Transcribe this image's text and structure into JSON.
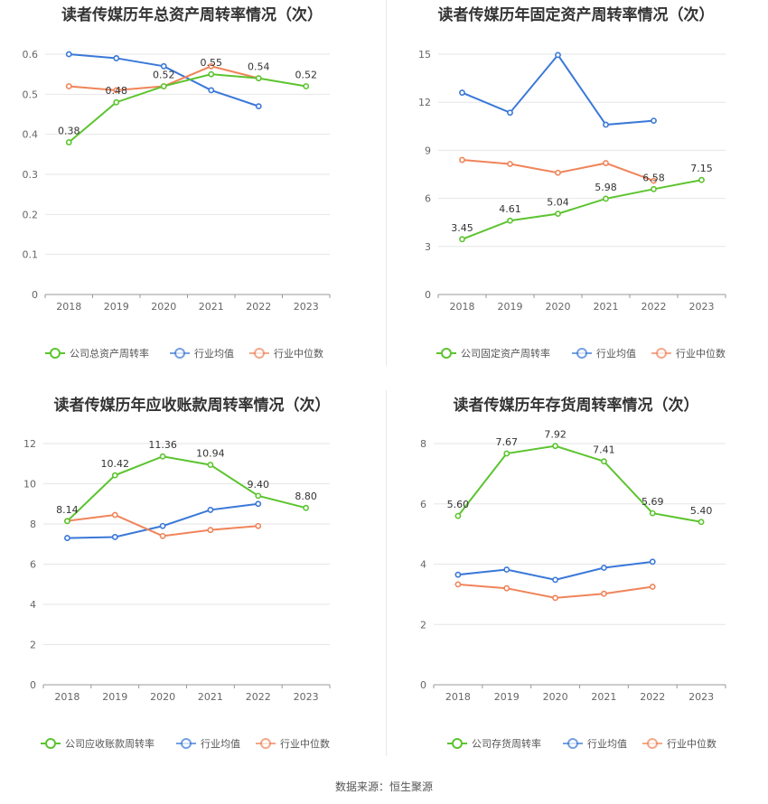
{
  "source": "数据来源：恒生聚源",
  "colors": {
    "company": "#5cc42f",
    "avg": "#3a78d8",
    "median": "#f0845a",
    "grid": "#e6e6e6",
    "axis": "#999999"
  },
  "legend": {
    "avg": "行业均值",
    "median": "行业中位数"
  },
  "chart_data": [
    {
      "type": "line",
      "title": "读者传媒历年总资产周转率情况（次）",
      "categories": [
        "2018",
        "2019",
        "2020",
        "2021",
        "2022",
        "2023"
      ],
      "ylim": [
        0,
        0.6
      ],
      "yticks": [
        "0",
        "0.1",
        "0.2",
        "0.3",
        "0.4",
        "0.5",
        "0.6"
      ],
      "grid": true,
      "legend_position": "bottom",
      "series": [
        {
          "name": "公司总资产周转率",
          "role": "company",
          "values": [
            0.38,
            0.48,
            0.52,
            0.55,
            0.54,
            0.52
          ],
          "labels": [
            "0.38",
            "0.48",
            "0.52",
            "0.55",
            "0.54",
            "0.52"
          ]
        },
        {
          "name": "行业均值",
          "role": "avg",
          "values": [
            0.6,
            0.59,
            0.57,
            0.51,
            0.47,
            null
          ]
        },
        {
          "name": "行业中位数",
          "role": "median",
          "values": [
            0.52,
            0.51,
            0.52,
            0.57,
            0.54,
            null
          ]
        }
      ]
    },
    {
      "type": "line",
      "title": "读者传媒历年固定资产周转率情况（次）",
      "categories": [
        "2018",
        "2019",
        "2020",
        "2021",
        "2022",
        "2023"
      ],
      "ylim": [
        0,
        15
      ],
      "yticks": [
        "0",
        "3",
        "6",
        "9",
        "12",
        "15"
      ],
      "grid": true,
      "legend_position": "bottom",
      "series": [
        {
          "name": "公司固定资产周转率",
          "role": "company",
          "values": [
            3.45,
            4.61,
            5.04,
            5.98,
            6.58,
            7.15
          ],
          "labels": [
            "3.45",
            "4.61",
            "5.04",
            "5.98",
            "6.58",
            "7.15"
          ]
        },
        {
          "name": "行业均值",
          "role": "avg",
          "values": [
            12.6,
            11.35,
            14.95,
            10.6,
            10.85,
            null
          ]
        },
        {
          "name": "行业中位数",
          "role": "median",
          "values": [
            8.4,
            8.15,
            7.6,
            8.2,
            7.1,
            null
          ]
        }
      ]
    },
    {
      "type": "line",
      "title": "读者传媒历年应收账款周转率情况（次）",
      "categories": [
        "2018",
        "2019",
        "2020",
        "2021",
        "2022",
        "2023"
      ],
      "ylim": [
        0,
        12
      ],
      "yticks": [
        "0",
        "2",
        "4",
        "6",
        "8",
        "10",
        "12"
      ],
      "grid": true,
      "legend_position": "bottom",
      "series": [
        {
          "name": "公司应收账款周转率",
          "role": "company",
          "values": [
            8.14,
            10.42,
            11.36,
            10.94,
            9.4,
            8.8
          ],
          "labels": [
            "8.14",
            "10.42",
            "11.36",
            "10.94",
            "9.40",
            "8.80"
          ]
        },
        {
          "name": "行业均值",
          "role": "avg",
          "values": [
            7.3,
            7.35,
            7.9,
            8.7,
            9.0,
            null
          ]
        },
        {
          "name": "行业中位数",
          "role": "median",
          "values": [
            8.15,
            8.45,
            7.4,
            7.7,
            7.9,
            null
          ]
        }
      ]
    },
    {
      "type": "line",
      "title": "读者传媒历年存货周转率情况（次）",
      "categories": [
        "2018",
        "2019",
        "2020",
        "2021",
        "2022",
        "2023"
      ],
      "ylim": [
        0,
        8
      ],
      "yticks": [
        "0",
        "2",
        "4",
        "6",
        "8"
      ],
      "grid": true,
      "legend_position": "bottom",
      "series": [
        {
          "name": "公司存货周转率",
          "role": "company",
          "values": [
            5.6,
            7.67,
            7.92,
            7.41,
            5.69,
            5.4
          ],
          "labels": [
            "5.60",
            "7.67",
            "7.92",
            "7.41",
            "5.69",
            "5.40"
          ]
        },
        {
          "name": "行业均值",
          "role": "avg",
          "values": [
            3.65,
            3.82,
            3.48,
            3.88,
            4.08,
            null
          ]
        },
        {
          "name": "行业中位数",
          "role": "median",
          "values": [
            3.33,
            3.2,
            2.88,
            3.02,
            3.25,
            null
          ]
        }
      ]
    }
  ]
}
